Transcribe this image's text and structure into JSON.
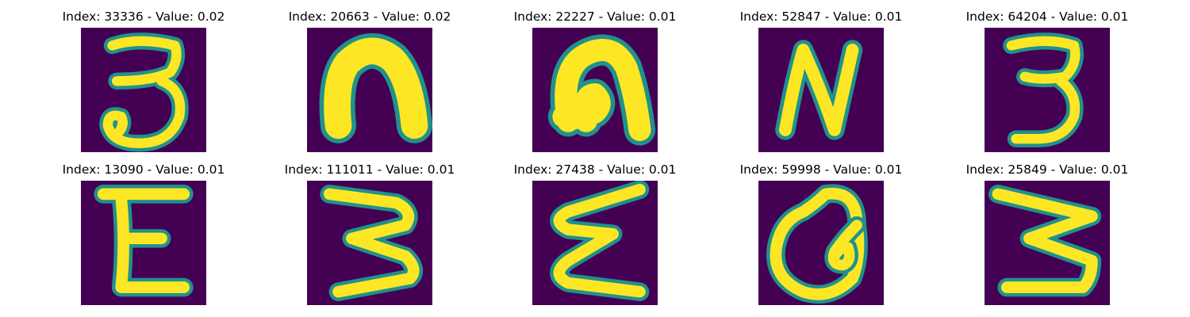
{
  "figure": {
    "background": "#ffffff",
    "colormap": {
      "name": "viridis",
      "low": "#440154",
      "mid": "#21918c",
      "high": "#fde725"
    },
    "panels": [
      {
        "title": "Index: 33336 - Value: 0.02",
        "index": 33336,
        "value": 0.02,
        "glyph": "3"
      },
      {
        "title": "Index: 20663 - Value: 0.02",
        "index": 20663,
        "value": 0.02,
        "glyph": "n-thick"
      },
      {
        "title": "Index: 22227 - Value: 0.01",
        "index": 22227,
        "value": 0.01,
        "glyph": "n-curl"
      },
      {
        "title": "Index: 52847 - Value: 0.01",
        "index": 52847,
        "value": 0.01,
        "glyph": "N"
      },
      {
        "title": "Index: 64204 - Value: 0.01",
        "index": 64204,
        "value": 0.01,
        "glyph": "3"
      },
      {
        "title": "Index: 13090 - Value: 0.01",
        "index": 13090,
        "value": 0.01,
        "glyph": "E"
      },
      {
        "title": "Index: 111011 - Value: 0.01",
        "index": 111011,
        "value": 0.01,
        "glyph": "3-zigzag"
      },
      {
        "title": "Index: 27438 - Value: 0.01",
        "index": 27438,
        "value": 0.01,
        "glyph": "sigma"
      },
      {
        "title": "Index: 59998 - Value: 0.01",
        "index": 59998,
        "value": 0.01,
        "glyph": "Q-loop"
      },
      {
        "title": "Index: 25849 - Value: 0.01",
        "index": 25849,
        "value": 0.01,
        "glyph": "M-sideways"
      }
    ]
  }
}
